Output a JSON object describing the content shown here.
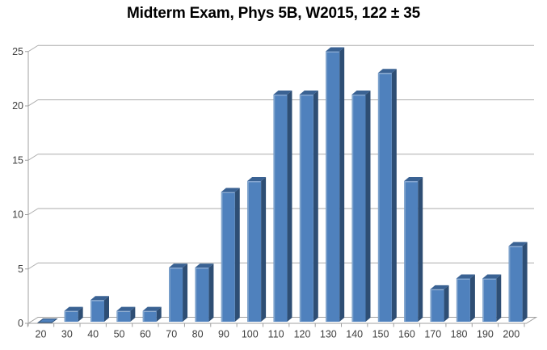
{
  "chart_data": {
    "type": "bar",
    "style": "3d-column",
    "title": "Midterm Exam, Phys 5B, W2015, 122 ± 35",
    "xlabel": "",
    "ylabel": "",
    "categories": [
      20,
      30,
      40,
      50,
      60,
      70,
      80,
      90,
      100,
      110,
      120,
      130,
      140,
      150,
      160,
      170,
      180,
      190,
      200
    ],
    "values": [
      0,
      1,
      2,
      1,
      1,
      5,
      5,
      12,
      13,
      21,
      21,
      25,
      21,
      23,
      13,
      3,
      4,
      4,
      7
    ],
    "ylim": [
      0,
      25
    ],
    "yticks": [
      0,
      5,
      10,
      15,
      20,
      25
    ],
    "grid": true,
    "legend": false,
    "colors": {
      "bar_front": "#4F81BD",
      "bar_side": "#2E4E74",
      "bar_top": "#3A6293",
      "bar_highlight": "#7FA3CC",
      "bar_bevel": "#9AB5D6",
      "gridline": "#ABABAB",
      "axis": "#A0A0A0",
      "tick_label": "#3F3F3F",
      "title": "#000000",
      "background": "#FFFFFF"
    }
  }
}
